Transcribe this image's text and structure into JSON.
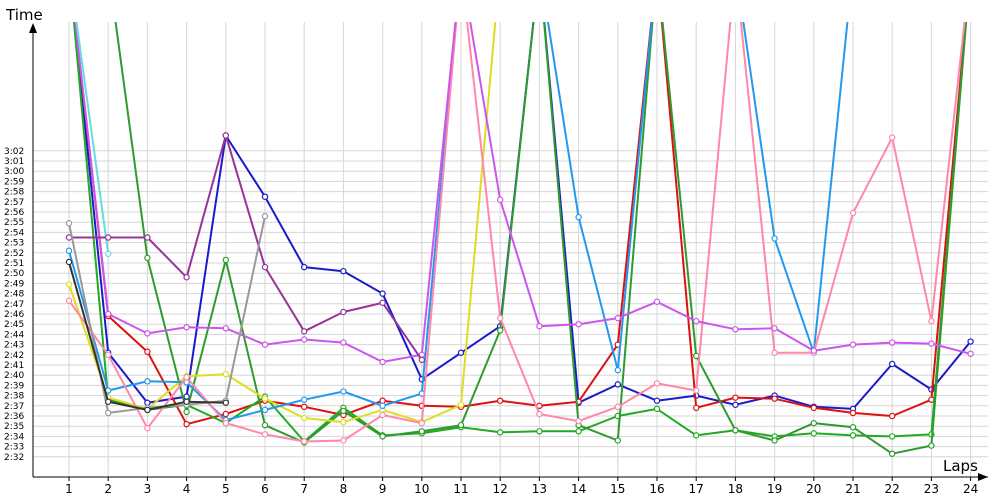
{
  "chart_data": {
    "type": "line",
    "title": "",
    "xlabel": "Laps",
    "ylabel": "Time",
    "x_ticks": [
      "1",
      "2",
      "3",
      "4",
      "5",
      "6",
      "7",
      "8",
      "9",
      "10",
      "11",
      "12",
      "13",
      "14",
      "15",
      "16",
      "17",
      "18",
      "19",
      "20",
      "21",
      "22",
      "23",
      "24"
    ],
    "y_ticks": [
      "2:32",
      "2:33",
      "2:34",
      "2:35",
      "2:36",
      "2:37",
      "2:38",
      "2:39",
      "2:40",
      "2:41",
      "2:42",
      "2:43",
      "2:44",
      "2:45",
      "2:46",
      "2:47",
      "2:48",
      "2:49",
      "2:50",
      "2:51",
      "2:52",
      "2:53",
      "2:54",
      "2:55",
      "2:56",
      "2:57",
      "2:58",
      "2:59",
      "3:00",
      "3:01",
      "3:02"
    ],
    "ylim_seconds": [
      151,
      183
    ],
    "grid": true,
    "legend": "none",
    "series": [
      {
        "color": "#1a1acc",
        "values": [
          200,
          162.2,
          157.3,
          157.9,
          183.5,
          177.5,
          170.6,
          170.2,
          168.0,
          159.6,
          162.2,
          164.8,
          200,
          157.3,
          159.1,
          157.5,
          158.0,
          157.1,
          158.0,
          156.9,
          156.7,
          161.1,
          158.6,
          163.3
        ]
      },
      {
        "color": "#dd1111",
        "values": [
          200,
          165.8,
          162.3,
          155.2,
          156.2,
          157.5,
          156.9,
          156.1,
          157.5,
          157.0,
          156.9,
          157.5,
          157.0,
          157.4,
          163.0,
          200,
          156.8,
          157.8,
          157.7,
          156.8,
          156.3,
          156.0,
          157.6,
          200
        ]
      },
      {
        "color": "#22aa22",
        "values": [
          200,
          157.6,
          156.6,
          157.1,
          155.3,
          157.9,
          153.5,
          156.8,
          154.1,
          154.3,
          154.9,
          154.4,
          154.5,
          154.5,
          156.0,
          156.7,
          154.1,
          154.6,
          154.0,
          154.3,
          154.1,
          154.0,
          154.2,
          200
        ]
      },
      {
        "color": "#2e9b2e",
        "values": [
          200,
          200,
          171.5,
          156.4,
          171.3,
          155.1,
          153.4,
          156.5,
          154.0,
          154.5,
          155.1,
          164.4,
          200,
          155.1,
          153.6,
          200,
          161.9,
          154.6,
          153.6,
          155.3,
          154.9,
          152.3,
          153.1,
          200
        ]
      },
      {
        "color": "#dddd22",
        "values": [
          168.9,
          157.8,
          156.7,
          159.9,
          160.1,
          157.7,
          155.8,
          155.4,
          156.6,
          155.4,
          157.1,
          200
        ]
      },
      {
        "color": "#2299ee",
        "values": [
          172.2,
          158.5,
          159.4,
          159.3,
          155.6,
          156.6,
          157.6,
          158.4,
          157.0,
          158.2,
          200,
          200,
          200,
          175.5,
          160.5,
          200,
          200,
          200,
          173.4,
          162.2,
          200
        ]
      },
      {
        "color": "#ff88aa",
        "values": [
          167.3,
          162.0,
          154.8,
          159.8,
          155.3,
          154.2,
          153.5,
          153.6,
          156.1,
          155.3,
          200,
          165.6,
          156.2,
          155.5,
          156.9,
          159.2,
          158.5,
          200,
          162.2,
          162.2,
          175.9,
          183.3,
          165.3,
          200
        ]
      },
      {
        "color": "#cc55ee",
        "values": [
          200,
          166.0,
          164.1,
          164.7,
          164.6,
          163.0,
          163.5,
          163.2,
          161.3,
          162.0,
          200,
          177.2,
          164.8,
          165.0,
          165.6,
          167.2,
          165.3,
          164.5,
          164.6,
          162.4,
          163.0,
          163.2,
          163.1,
          162.1
        ]
      },
      {
        "color": "#66dddd",
        "values": [
          200,
          171.9
        ]
      },
      {
        "color": "#993399",
        "values": [
          173.5,
          173.5,
          173.5,
          169.6,
          183.5,
          170.6,
          164.3,
          166.2,
          167.1,
          161.5
        ]
      },
      {
        "color": "#999999",
        "values": [
          174.9,
          156.3,
          156.8,
          157.1,
          157.5,
          175.6
        ]
      },
      {
        "color": "#333333",
        "values": [
          171.1,
          157.4,
          156.6,
          157.4,
          157.3
        ]
      }
    ]
  }
}
